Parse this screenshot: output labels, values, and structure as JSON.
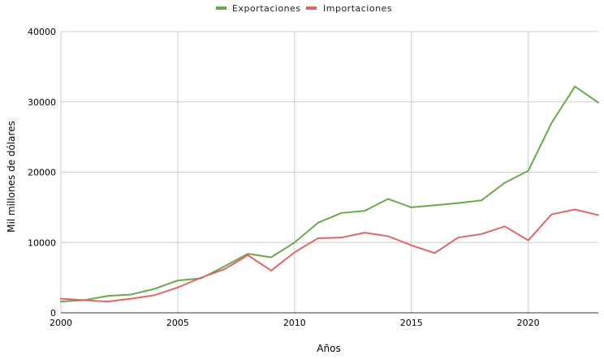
{
  "chart_data": {
    "type": "line",
    "xlabel": "Años",
    "ylabel": "Mil millones de dólares",
    "xlim": [
      2000,
      2023
    ],
    "ylim": [
      0,
      40000
    ],
    "x_ticks": [
      2000,
      2005,
      2010,
      2015,
      2020
    ],
    "y_ticks": [
      0,
      10000,
      20000,
      30000,
      40000
    ],
    "grid": true,
    "legend_position": "top-center",
    "x": [
      2000,
      2001,
      2002,
      2003,
      2004,
      2005,
      2006,
      2007,
      2008,
      2009,
      2010,
      2011,
      2012,
      2013,
      2014,
      2015,
      2016,
      2017,
      2018,
      2019,
      2020,
      2021,
      2022,
      2023
    ],
    "series": [
      {
        "name": "Exportaciones",
        "color": "#6aa84f",
        "values": [
          1600,
          1800,
          2400,
          2600,
          3400,
          4600,
          4900,
          6600,
          8400,
          7900,
          10000,
          12800,
          14200,
          14500,
          16200,
          15000,
          15300,
          15600,
          16000,
          18500,
          20200,
          27000,
          32200,
          29900
        ]
      },
      {
        "name": "Importaciones",
        "color": "#e06666",
        "values": [
          2000,
          1800,
          1600,
          2000,
          2500,
          3600,
          5000,
          6200,
          8200,
          6000,
          8600,
          10600,
          10700,
          11400,
          10900,
          9600,
          8500,
          10700,
          11200,
          12300,
          10300,
          14000,
          14700,
          13900
        ]
      }
    ]
  }
}
